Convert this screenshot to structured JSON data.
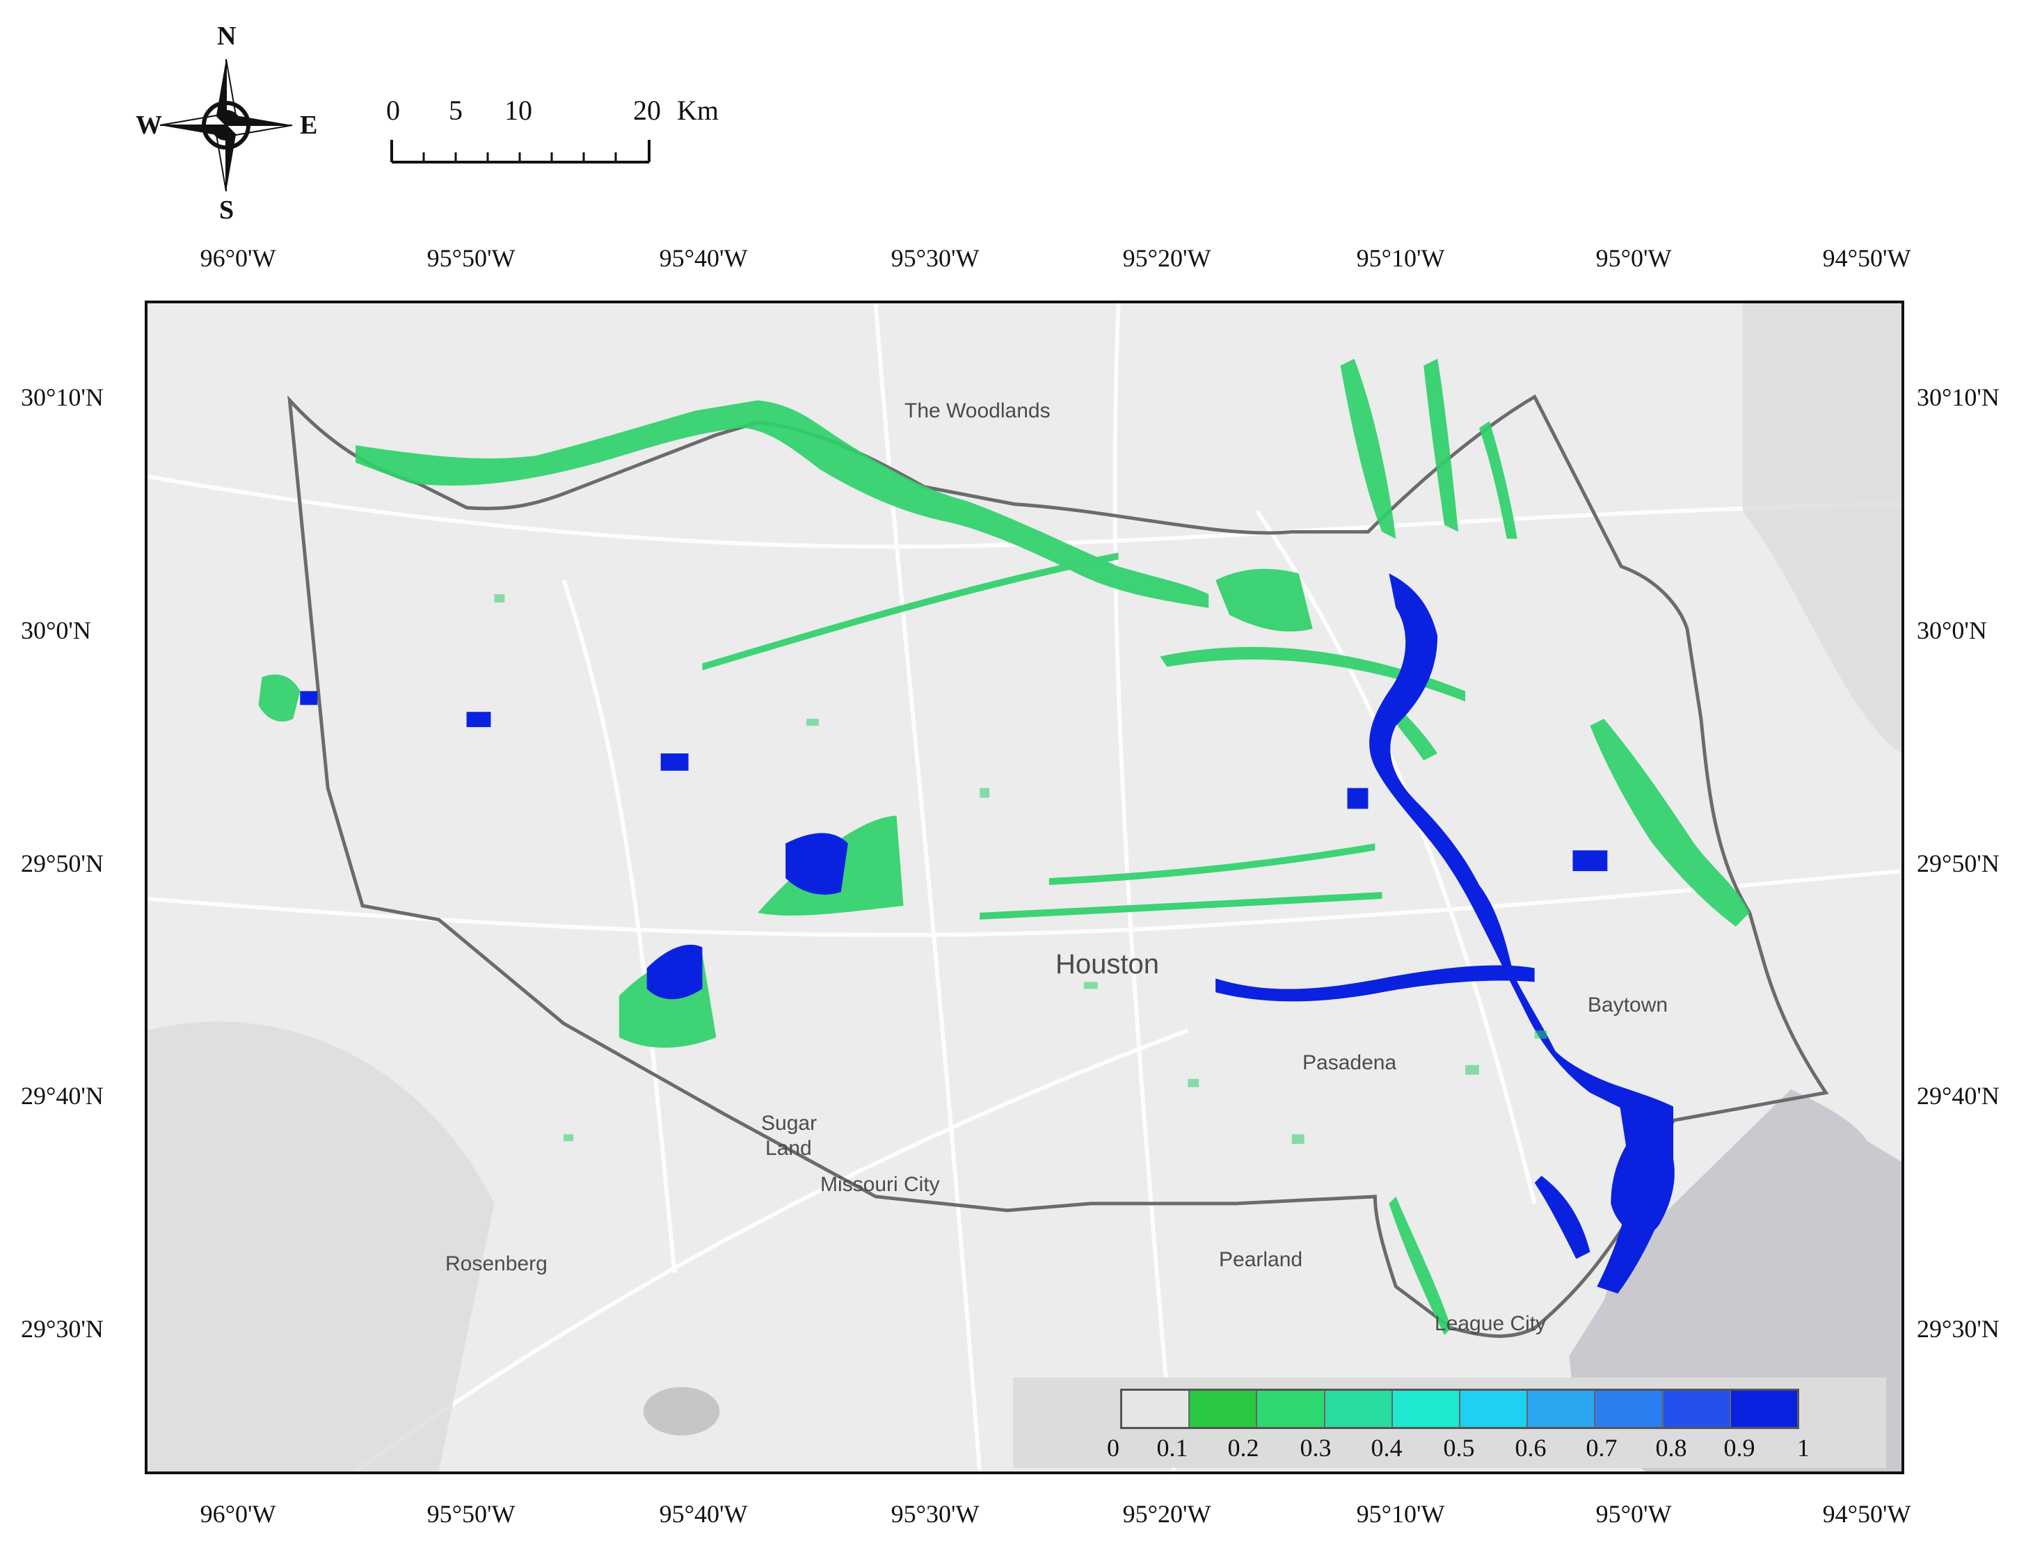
{
  "compass": {
    "north": "N",
    "south": "S",
    "east": "E",
    "west": "W",
    "icon": "compass-rose-icon"
  },
  "scale_bar": {
    "labels": [
      "0",
      "5",
      "10",
      "20"
    ],
    "unit": "Km"
  },
  "axis_ticks": {
    "longitude": [
      "96°0'W",
      "95°50'W",
      "95°40'W",
      "95°30'W",
      "95°20'W",
      "95°10'W",
      "95°0'W",
      "94°50'W"
    ],
    "latitude": [
      "30°10'N",
      "30°0'N",
      "29°50'N",
      "29°40'N",
      "29°30'N"
    ]
  },
  "cities": [
    {
      "name": "The Woodlands"
    },
    {
      "name": "Houston"
    },
    {
      "name": "Baytown"
    },
    {
      "name": "Pasadena"
    },
    {
      "name": "Sugar"
    },
    {
      "name": "Land"
    },
    {
      "name": "Missouri City"
    },
    {
      "name": "Rosenberg"
    },
    {
      "name": "Pearland"
    },
    {
      "name": "League City"
    }
  ],
  "legend": {
    "ticks": [
      "0",
      "0.1",
      "0.2",
      "0.3",
      "0.4",
      "0.5",
      "0.6",
      "0.7",
      "0.8",
      "0.9",
      "1"
    ],
    "colors": [
      "#e6e6e6",
      "#28c840",
      "#2ed870",
      "#29dca0",
      "#1de8d0",
      "#1fd0f0",
      "#2aa6f0",
      "#2b7ef0",
      "#2450ee",
      "#0a22e0"
    ]
  },
  "colors": {
    "low_probability": "#2fd06a",
    "high_probability": "#0a22e0",
    "boundary": "#666666",
    "bay": "#c9c9cf",
    "background": "#ececec"
  }
}
